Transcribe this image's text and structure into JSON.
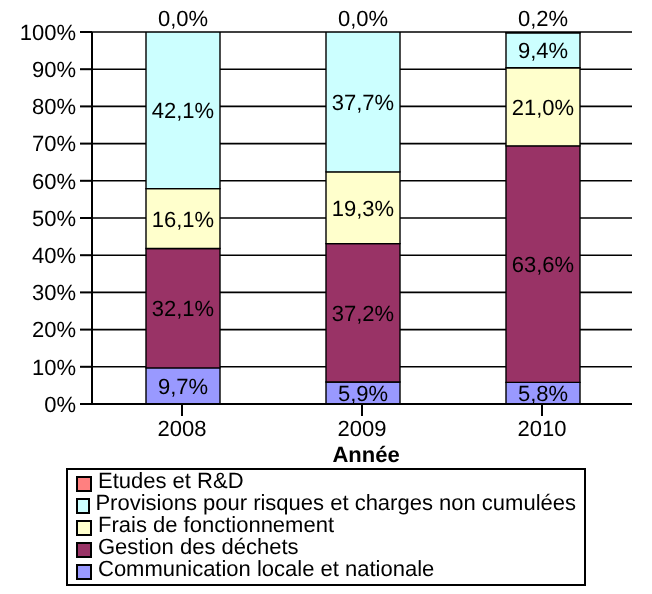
{
  "chart_data": {
    "type": "bar",
    "stacked": true,
    "xlabel": "Année",
    "categories": [
      "2008",
      "2009",
      "2010"
    ],
    "series": [
      {
        "name": "Communication locale et nationale",
        "color": "#9999ff",
        "values": [
          9.7,
          5.9,
          5.8
        ],
        "value_labels": [
          "9,7%",
          "5,9%",
          "5,8%"
        ]
      },
      {
        "name": "Gestion des déchets",
        "color": "#993366",
        "values": [
          32.1,
          37.2,
          63.6
        ],
        "value_labels": [
          "32,1%",
          "37,2%",
          "63,6%"
        ]
      },
      {
        "name": "Frais de fonctionnement",
        "color": "#ffffcc",
        "values": [
          16.1,
          19.3,
          21.0
        ],
        "value_labels": [
          "16,1%",
          "19,3%",
          "21,0%"
        ]
      },
      {
        "name": "Provisions pour risques et charges non cumulées",
        "color": "#ccffff",
        "values": [
          42.1,
          37.7,
          9.4
        ],
        "value_labels": [
          "42,1%",
          "37,7%",
          "9,4%"
        ]
      },
      {
        "name": "Etudes et R&D",
        "color": "#ff8080",
        "values": [
          0.0,
          0.0,
          0.2
        ],
        "value_labels": [
          "0,0%",
          "0,0%",
          "0,2%"
        ]
      }
    ],
    "ylim": [
      0,
      100
    ],
    "yticks": [
      {
        "value": 0,
        "label": "0%"
      },
      {
        "value": 10,
        "label": "10%"
      },
      {
        "value": 20,
        "label": "20%"
      },
      {
        "value": 30,
        "label": "30%"
      },
      {
        "value": 40,
        "label": "40%"
      },
      {
        "value": 50,
        "label": "50%"
      },
      {
        "value": 60,
        "label": "60%"
      },
      {
        "value": 70,
        "label": "70%"
      },
      {
        "value": 80,
        "label": "80%"
      },
      {
        "value": 90,
        "label": "90%"
      },
      {
        "value": 100,
        "label": "100%"
      }
    ],
    "grid": "y",
    "legend": "bottom"
  }
}
